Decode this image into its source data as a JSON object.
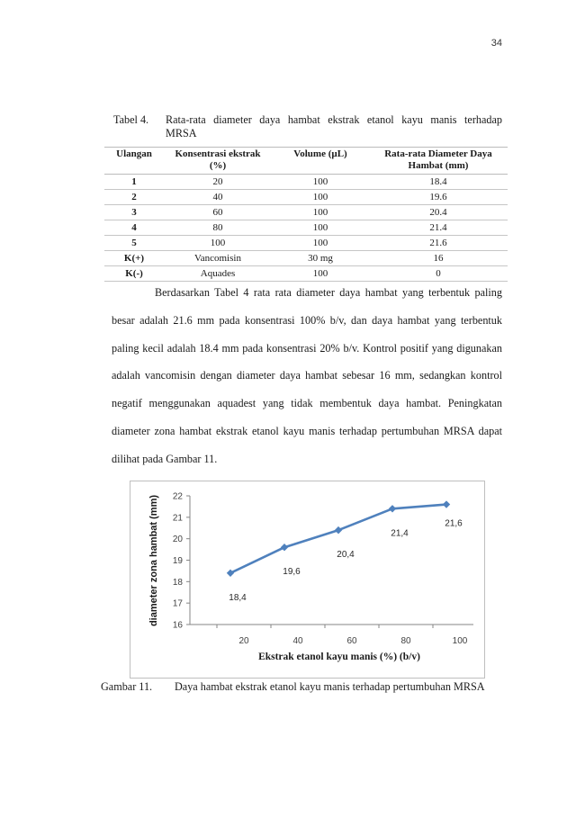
{
  "page_number": "34",
  "table_caption": {
    "label": "Tabel 4.",
    "text_line1": "Rata-rata diameter daya hambat ekstrak etanol kayu manis terhadap",
    "text_line2": "MRSA"
  },
  "table": {
    "headers": [
      "Ulangan",
      "Konsentrasi ekstrak (%)",
      "Volume (µL)",
      "Rata-rata Diameter Daya Hambat (mm)"
    ],
    "rows": [
      [
        "1",
        "20",
        "100",
        "18.4"
      ],
      [
        "2",
        "40",
        "100",
        "19.6"
      ],
      [
        "3",
        "60",
        "100",
        "20.4"
      ],
      [
        "4",
        "80",
        "100",
        "21.4"
      ],
      [
        "5",
        "100",
        "100",
        "21.6"
      ],
      [
        "K(+)",
        "Vancomisin",
        "30 mg",
        "16"
      ],
      [
        "K(-)",
        "Aquades",
        "100",
        "0"
      ]
    ]
  },
  "body_paragraph": "Berdasarkan Tabel 4 rata rata diameter daya hambat yang terbentuk paling besar adalah 21.6 mm pada konsentrasi 100% b/v, dan daya hambat yang terbentuk paling kecil adalah 18.4 mm pada konsentrasi 20% b/v. Kontrol positif yang digunakan adalah vancomisin dengan diameter daya hambat sebesar 16 mm, sedangkan kontrol negatif menggunakan aquadest yang tidak membentuk daya hambat. Peningkatan diameter zona hambat ekstrak etanol kayu manis terhadap pertumbuhan MRSA dapat dilihat pada Gambar 11.",
  "chart_data": {
    "type": "line",
    "x": [
      15,
      35,
      55,
      75,
      95
    ],
    "series": [
      {
        "values": [
          18.4,
          19.6,
          20.4,
          21.4,
          21.6
        ],
        "color": "#4f81bd"
      }
    ],
    "data_labels": [
      "18,4",
      "19,6",
      "20,4",
      "21,4",
      "21,6"
    ],
    "xlabel": "Ekstrak etanol kayu manis (%) (b/v)",
    "ylabel": "diameter zona hambat (mm)",
    "xlim": [
      0,
      105
    ],
    "ylim": [
      16,
      22
    ],
    "x_ticks": [
      20,
      40,
      60,
      80,
      100
    ],
    "y_ticks": [
      16,
      17,
      18,
      19,
      20,
      21,
      22
    ],
    "grid": false,
    "legend": "none"
  },
  "figure_caption": {
    "label": "Gambar 11.",
    "text": "Daya hambat ekstrak etanol kayu manis  terhadap pertumbuhan MRSA"
  }
}
